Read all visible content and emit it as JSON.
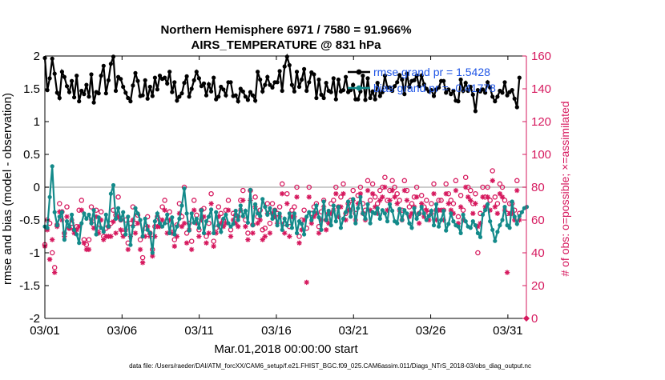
{
  "chart_data": {
    "type": "line",
    "title_line1": "Northern Hemisphere 6971 / 7580 = 91.966%",
    "title_line2": "AIRS_TEMPERATURE @ 831 hPa",
    "xlabel": "Mar.01,2018 00:00:00 start",
    "ylabel_left": "rmse and bias (model - observation)",
    "ylabel_right": "# of obs: o=possible; ×=assimilated",
    "footer": "data file: /Users/raeder/DAI/ATM_forcXX/CAM6_setup/f.e21.FHIST_BGC.f09_025.CAM6assim.011/Diags_NTrS_2018-03/obs_diag_output.nc",
    "x_ticks": [
      "03/01",
      "03/06",
      "03/11",
      "03/16",
      "03/21",
      "03/26",
      "03/31"
    ],
    "x_tick_days": [
      0,
      5,
      10,
      15,
      20,
      25,
      30
    ],
    "xlim": [
      0,
      31.2
    ],
    "ylim_left": [
      -2,
      2
    ],
    "y_ticks_left": [
      "-2",
      "-1.5",
      "-1",
      "-0.5",
      "0",
      "0.5",
      "1",
      "1.5",
      "2"
    ],
    "ylim_right": [
      0,
      160
    ],
    "y_ticks_right": [
      "0",
      "20",
      "40",
      "60",
      "80",
      "100",
      "120",
      "140",
      "160"
    ],
    "legend": [
      "rmse grand pr = 1.5428",
      "bias grand pr = -0.41778"
    ],
    "colors": {
      "rmse": "#000000",
      "bias": "#138a8a",
      "obs": "#d6195e",
      "legend": "#1f55e6",
      "zero": "#bbbbbb"
    },
    "series": [
      {
        "name": "rmse",
        "values": [
          1.97,
          1.48,
          1.66,
          1.96,
          1.73,
          1.44,
          1.36,
          1.76,
          1.68,
          1.54,
          1.45,
          1.62,
          1.37,
          1.7,
          1.31,
          1.47,
          1.42,
          1.56,
          1.38,
          1.72,
          1.29,
          1.45,
          1.43,
          1.7,
          1.85,
          1.43,
          1.63,
          1.88,
          1.99,
          1.47,
          1.68,
          1.65,
          1.53,
          1.44,
          1.36,
          1.31,
          1.55,
          1.74,
          1.62,
          1.39,
          1.4,
          1.63,
          1.35,
          1.53,
          1.39,
          1.67,
          1.49,
          1.7,
          1.65,
          1.67,
          1.58,
          1.76,
          1.45,
          1.6,
          1.32,
          1.38,
          1.43,
          1.59,
          1.69,
          1.38,
          1.5,
          1.63,
          1.76,
          1.66,
          1.54,
          1.58,
          1.4,
          1.57,
          1.46,
          1.67,
          1.34,
          1.38,
          1.53,
          1.49,
          1.4,
          1.6,
          1.6,
          1.39,
          1.4,
          1.31,
          1.5,
          1.46,
          1.38,
          1.33,
          1.45,
          1.4,
          1.32,
          1.76,
          1.64,
          1.46,
          1.56,
          1.68,
          1.56,
          1.52,
          1.6,
          1.6,
          1.77,
          1.47,
          1.84,
          1.99,
          1.86,
          1.56,
          1.46,
          1.76,
          1.53,
          1.64,
          1.8,
          1.47,
          1.6,
          1.75,
          1.72,
          1.36,
          1.64,
          1.41,
          1.36,
          1.59,
          1.47,
          1.45,
          1.66,
          1.34,
          1.64,
          1.46,
          1.48,
          1.68,
          1.45,
          1.48,
          1.56,
          1.34,
          1.34,
          1.46,
          1.7,
          1.33,
          1.66,
          1.36,
          1.46,
          1.34,
          1.59,
          1.39,
          1.45,
          1.7,
          1.52,
          1.52,
          1.47,
          1.54,
          1.6,
          1.71,
          1.64,
          1.42,
          1.73,
          1.53,
          1.62,
          1.63,
          1.7,
          1.54,
          1.7,
          1.57,
          1.5,
          1.46,
          1.48,
          1.39,
          1.49,
          1.52,
          1.62,
          1.62,
          1.44,
          1.49,
          1.42,
          1.47,
          1.32,
          1.31,
          1.64,
          1.47,
          1.59,
          1.47,
          1.53,
          1.41,
          1.16,
          1.48,
          1.46,
          1.49,
          1.44,
          1.6,
          1.52,
          1.38,
          1.31,
          1.38,
          1.47,
          1.44,
          1.6,
          1.4,
          1.45,
          1.48,
          1.35,
          1.22,
          1.67
        ]
      },
      {
        "name": "bias",
        "values": [
          -0.6,
          -0.62,
          -0.15,
          0.32,
          -0.38,
          -0.58,
          -0.45,
          -0.38,
          -0.8,
          -0.52,
          -0.6,
          -0.42,
          -0.65,
          -0.72,
          -0.85,
          -0.55,
          -0.4,
          -0.48,
          -0.42,
          -0.55,
          -0.35,
          -0.72,
          -0.46,
          -0.62,
          -0.68,
          -0.42,
          -0.6,
          -0.1,
          0.03,
          -0.48,
          -0.32,
          -0.5,
          -0.38,
          -0.72,
          -0.45,
          -0.88,
          -0.6,
          -0.32,
          -0.4,
          -0.5,
          -0.75,
          -0.48,
          -0.65,
          -0.7,
          -1.0,
          -0.52,
          -0.4,
          -0.55,
          -0.6,
          -0.55,
          -0.42,
          -0.7,
          -0.46,
          -0.72,
          -0.6,
          -0.48,
          -0.28,
          -0.02,
          -0.4,
          -0.66,
          -0.4,
          -0.54,
          -0.48,
          -0.62,
          -0.35,
          -0.7,
          -0.52,
          -0.45,
          -0.34,
          -0.7,
          -0.38,
          -0.58,
          -0.68,
          -0.48,
          -0.42,
          -0.55,
          -0.6,
          -0.56,
          -0.36,
          -0.5,
          -0.28,
          -0.44,
          -0.36,
          -0.54,
          -0.04,
          -0.58,
          -0.26,
          -0.4,
          -0.44,
          -0.18,
          -0.3,
          -0.42,
          -0.32,
          -0.48,
          -0.35,
          -0.58,
          -0.4,
          -0.65,
          -0.48,
          -0.58,
          -0.4,
          -0.62,
          -0.4,
          -0.7,
          -0.52,
          -0.56,
          -0.72,
          -0.45,
          -0.38,
          -0.5,
          -0.38,
          -0.28,
          -0.46,
          -0.65,
          -0.22,
          -0.5,
          -0.36,
          -0.58,
          -0.28,
          -0.52,
          -0.3,
          -0.62,
          -0.48,
          -0.38,
          -0.22,
          -0.45,
          -0.18,
          -0.55,
          -0.32,
          -0.15,
          -0.4,
          -0.48,
          -0.26,
          -0.55,
          -0.38,
          -0.4,
          -0.32,
          -0.48,
          -0.35,
          -0.4,
          -0.52,
          -0.26,
          -0.36,
          -0.52,
          -0.55,
          -0.33,
          -0.5,
          -0.35,
          -0.4,
          -0.55,
          -0.62,
          -0.32,
          -0.48,
          -0.4,
          -0.3,
          -0.4,
          -0.5,
          -0.44,
          -0.36,
          -0.58,
          -0.26,
          -0.6,
          -0.5,
          -0.36,
          -0.66,
          -0.56,
          -0.4,
          -0.52,
          -0.58,
          -0.6,
          -0.7,
          -0.42,
          -0.52,
          -0.6,
          -0.62,
          -0.52,
          -0.58,
          -0.7,
          -0.76,
          -0.42,
          -0.35,
          -0.26,
          -0.52,
          -0.65,
          -0.82,
          -0.68,
          -0.58,
          -0.5,
          -0.3,
          -0.58,
          -0.62,
          -0.22,
          -0.45,
          -0.56,
          -0.44,
          -0.38,
          -0.32,
          -0.3
        ]
      },
      {
        "name": "possible",
        "values": [
          45,
          60,
          58,
          40,
          31,
          57,
          70,
          65,
          52,
          68,
          55,
          58,
          54,
          56,
          66,
          72,
          48,
          45,
          48,
          68,
          57,
          66,
          55,
          65,
          50,
          55,
          56,
          58,
          66,
          63,
          74,
          60,
          52,
          60,
          46,
          58,
          68,
          58,
          63,
          48,
          37,
          55,
          62,
          52,
          42,
          56,
          62,
          60,
          68,
          72,
          59,
          65,
          55,
          48,
          57,
          70,
          62,
          80,
          52,
          58,
          47,
          72,
          63,
          54,
          66,
          67,
          50,
          58,
          76,
          47,
          55,
          68,
          64,
          60,
          66,
          72,
          54,
          64,
          63,
          62,
          72,
          78,
          60,
          52,
          78,
          57,
          74,
          62,
          66,
          54,
          55,
          70,
          58,
          70,
          66,
          64,
          68,
          82,
          58,
          76,
          56,
          66,
          68,
          80,
          50,
          60,
          66,
          55,
          80,
          64,
          68,
          70,
          56,
          65,
          72,
          60,
          64,
          70,
          72,
          80,
          68,
          74,
          82,
          64,
          70,
          72,
          78,
          64,
          75,
          80,
          70,
          66,
          84,
          72,
          82,
          74,
          70,
          78,
          80,
          86,
          72,
          78,
          84,
          80,
          76,
          72,
          66,
          84,
          78,
          68,
          70,
          74,
          80,
          64,
          75,
          68,
          72,
          64,
          70,
          82,
          66,
          72,
          72,
          66,
          82,
          76,
          72,
          70,
          84,
          62,
          75,
          66,
          86,
          80,
          78,
          70,
          76,
          40,
          64,
          80,
          74,
          80,
          72,
          90,
          74,
          70,
          82,
          80,
          72,
          64,
          70,
          70,
          66,
          84,
          64
        ]
      },
      {
        "name": "assimilated",
        "values": [
          44,
          54,
          36,
          48,
          28,
          56,
          65,
          60,
          50,
          62,
          55,
          60,
          52,
          54,
          56,
          66,
          46,
          42,
          42,
          60,
          55,
          62,
          52,
          60,
          48,
          50,
          50,
          50,
          59,
          52,
          62,
          54,
          50,
          54,
          42,
          50,
          60,
          52,
          58,
          42,
          34,
          50,
          56,
          50,
          38,
          50,
          56,
          56,
          60,
          66,
          52,
          60,
          52,
          44,
          50,
          64,
          56,
          58,
          46,
          54,
          42,
          66,
          58,
          50,
          60,
          62,
          46,
          52,
          70,
          44,
          52,
          62,
          58,
          56,
          58,
          66,
          50,
          60,
          58,
          56,
          66,
          72,
          56,
          48,
          72,
          52,
          68,
          58,
          60,
          48,
          50,
          64,
          52,
          64,
          62,
          58,
          62,
          76,
          52,
          70,
          50,
          62,
          62,
          74,
          46,
          54,
          60,
          22,
          74,
          58,
          62,
          64,
          52,
          60,
          68,
          54,
          58,
          64,
          66,
          76,
          62,
          68,
          76,
          60,
          66,
          66,
          72,
          60,
          70,
          76,
          64,
          60,
          78,
          66,
          76,
          68,
          64,
          72,
          74,
          80,
          66,
          72,
          78,
          74,
          70,
          66,
          60,
          78,
          72,
          62,
          64,
          68,
          74,
          58,
          70,
          62,
          66,
          60,
          64,
          76,
          60,
          66,
          66,
          60,
          76,
          70,
          66,
          64,
          78,
          58,
          68,
          60,
          80,
          74,
          72,
          64,
          70,
          56,
          58,
          74,
          68,
          74,
          66,
          84,
          68,
          64,
          76,
          74,
          66,
          28,
          64,
          64,
          60,
          78,
          60
        ]
      }
    ]
  }
}
